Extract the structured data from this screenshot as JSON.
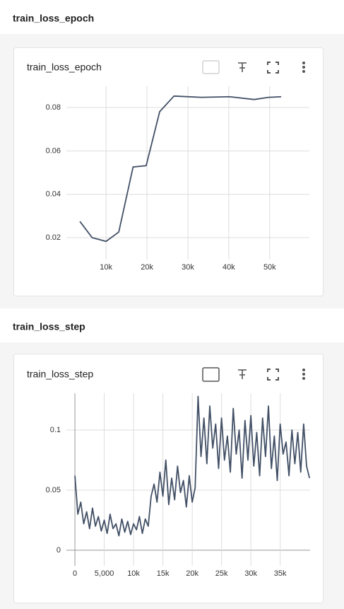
{
  "chart_data": [
    {
      "type": "line",
      "section": "train_loss_epoch",
      "title": "train_loss_epoch",
      "color": "#425066",
      "grid": true,
      "x": [
        3600,
        6600,
        10000,
        13100,
        16600,
        19800,
        23100,
        26600,
        33300,
        40200,
        46200,
        49700,
        52800
      ],
      "values": [
        0.0275,
        0.02,
        0.0183,
        0.0226,
        0.0526,
        0.0532,
        0.0781,
        0.0853,
        0.0847,
        0.085,
        0.0837,
        0.0847,
        0.085
      ],
      "xlim": [
        300,
        59700
      ],
      "ylim": [
        0.0099,
        0.0898
      ],
      "xticks": [
        {
          "value": 10000,
          "label": "10k"
        },
        {
          "value": 20000,
          "label": "20k"
        },
        {
          "value": 30000,
          "label": "30k"
        },
        {
          "value": 40000,
          "label": "40k"
        },
        {
          "value": 50000,
          "label": "50k"
        }
      ],
      "yticks": [
        0.02,
        0.04,
        0.06,
        0.08
      ]
    },
    {
      "type": "line",
      "section": "train_loss_step",
      "title": "train_loss_step",
      "color": "#425066",
      "grid": true,
      "x": [
        0,
        500,
        1000,
        1500,
        2000,
        2500,
        3000,
        3500,
        4000,
        4500,
        5000,
        5500,
        6000,
        6500,
        7000,
        7500,
        8000,
        8500,
        9000,
        9500,
        10000,
        10500,
        11000,
        11500,
        12000,
        12500,
        13000,
        13500,
        14000,
        14500,
        15000,
        15500,
        16000,
        16500,
        17000,
        17500,
        18000,
        18500,
        19000,
        19500,
        20000,
        20500,
        21000,
        21500,
        22000,
        22500,
        23000,
        23500,
        24000,
        24500,
        25000,
        25500,
        26000,
        26500,
        27000,
        27500,
        28000,
        28500,
        29000,
        29500,
        30000,
        30500,
        31000,
        31500,
        32000,
        32500,
        33000,
        33500,
        34000,
        34500,
        35000,
        35500,
        36000,
        36500,
        37000,
        37500,
        38000,
        38500,
        39000,
        39500,
        40000
      ],
      "values": [
        0.062,
        0.03,
        0.04,
        0.022,
        0.032,
        0.018,
        0.035,
        0.02,
        0.028,
        0.016,
        0.025,
        0.014,
        0.03,
        0.018,
        0.022,
        0.012,
        0.026,
        0.015,
        0.024,
        0.013,
        0.022,
        0.017,
        0.028,
        0.014,
        0.026,
        0.02,
        0.045,
        0.055,
        0.04,
        0.065,
        0.045,
        0.075,
        0.038,
        0.06,
        0.042,
        0.07,
        0.048,
        0.058,
        0.036,
        0.062,
        0.04,
        0.052,
        0.128,
        0.078,
        0.11,
        0.072,
        0.12,
        0.085,
        0.105,
        0.068,
        0.11,
        0.075,
        0.095,
        0.065,
        0.118,
        0.08,
        0.1,
        0.06,
        0.108,
        0.075,
        0.112,
        0.07,
        0.098,
        0.062,
        0.11,
        0.078,
        0.12,
        0.068,
        0.095,
        0.058,
        0.105,
        0.08,
        0.09,
        0.062,
        0.1,
        0.072,
        0.098,
        0.065,
        0.105,
        0.07,
        0.06
      ],
      "xlim": [
        -1450,
        40100
      ],
      "ylim": [
        -0.013,
        0.1306
      ],
      "xticks": [
        0,
        {
          "value": 5000,
          "label": "5,000"
        },
        {
          "value": 10000,
          "label": "10k"
        },
        {
          "value": 15000,
          "label": "15k"
        },
        {
          "value": 20000,
          "label": "20k"
        },
        {
          "value": 25000,
          "label": "25k"
        },
        {
          "value": 30000,
          "label": "30k"
        },
        {
          "value": 35000,
          "label": "35k"
        }
      ],
      "yticks": [
        0,
        0.05,
        0.1
      ]
    }
  ]
}
